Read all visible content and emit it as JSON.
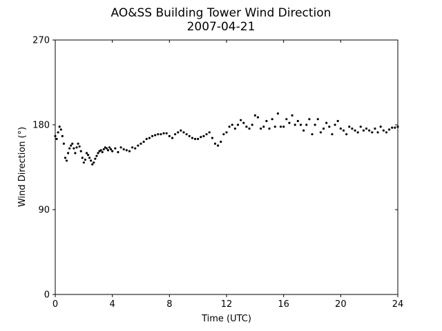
{
  "chart_data": {
    "type": "scatter",
    "title": "AO&SS Building Tower Wind Direction",
    "subtitle": "2007-04-21",
    "xlabel": "Time (UTC)",
    "ylabel": "Wind Direction (°)",
    "xlim": [
      0,
      24
    ],
    "ylim": [
      0,
      270
    ],
    "xticks": [
      0,
      4,
      8,
      12,
      16,
      20,
      24
    ],
    "yticks": [
      0,
      90,
      180,
      270
    ],
    "grid": false,
    "marker_color": "#000000",
    "series": [
      {
        "x": [
          0.0,
          0.1,
          0.2,
          0.3,
          0.4,
          0.5,
          0.6,
          0.7,
          0.8,
          0.9,
          1.0,
          1.1,
          1.2,
          1.3,
          1.4,
          1.5,
          1.6,
          1.7,
          1.8,
          1.9,
          2.0,
          2.1,
          2.2,
          2.3,
          2.4,
          2.5,
          2.6,
          2.7,
          2.8,
          2.9,
          3.0,
          3.1,
          3.2,
          3.3,
          3.4,
          3.5,
          3.6,
          3.7,
          3.8,
          3.9,
          4.0,
          4.2,
          4.4,
          4.6,
          4.8,
          5.0,
          5.2,
          5.4,
          5.6,
          5.8,
          6.0,
          6.2,
          6.4,
          6.6,
          6.8,
          7.0,
          7.2,
          7.4,
          7.6,
          7.8,
          8.0,
          8.2,
          8.4,
          8.6,
          8.8,
          9.0,
          9.2,
          9.4,
          9.6,
          9.8,
          10.0,
          10.2,
          10.4,
          10.6,
          10.8,
          11.0,
          11.2,
          11.4,
          11.6,
          11.8,
          12.0,
          12.2,
          12.4,
          12.6,
          12.8,
          13.0,
          13.2,
          13.4,
          13.6,
          13.8,
          14.0,
          14.2,
          14.4,
          14.6,
          14.8,
          15.0,
          15.2,
          15.4,
          15.6,
          15.8,
          16.0,
          16.2,
          16.4,
          16.6,
          16.8,
          17.0,
          17.2,
          17.4,
          17.6,
          17.8,
          18.0,
          18.2,
          18.4,
          18.6,
          18.8,
          19.0,
          19.2,
          19.4,
          19.6,
          19.8,
          20.0,
          20.2,
          20.4,
          20.6,
          20.8,
          21.0,
          21.2,
          21.4,
          21.6,
          21.8,
          22.0,
          22.2,
          22.4,
          22.6,
          22.8,
          23.0,
          23.2,
          23.4,
          23.6,
          23.8,
          24.0
        ],
        "y": [
          168,
          165,
          172,
          178,
          175,
          168,
          160,
          145,
          142,
          150,
          155,
          158,
          160,
          155,
          150,
          156,
          160,
          157,
          152,
          145,
          140,
          143,
          150,
          148,
          145,
          142,
          138,
          140,
          144,
          147,
          150,
          152,
          153,
          151,
          154,
          156,
          155,
          153,
          156,
          154,
          152,
          155,
          151,
          156,
          154,
          153,
          152,
          156,
          155,
          158,
          160,
          162,
          165,
          166,
          168,
          169,
          170,
          170,
          171,
          171,
          168,
          166,
          170,
          172,
          174,
          172,
          170,
          168,
          166,
          165,
          165,
          167,
          168,
          170,
          172,
          166,
          160,
          158,
          162,
          170,
          172,
          178,
          180,
          176,
          180,
          185,
          182,
          178,
          176,
          180,
          190,
          188,
          176,
          178,
          184,
          176,
          186,
          178,
          192,
          178,
          178,
          186,
          182,
          190,
          180,
          184,
          180,
          174,
          180,
          186,
          170,
          180,
          186,
          172,
          176,
          182,
          178,
          170,
          180,
          184,
          176,
          174,
          170,
          178,
          176,
          174,
          172,
          178,
          174,
          176,
          174,
          172,
          176,
          172,
          178,
          174,
          172,
          175,
          177,
          177,
          178
        ]
      }
    ]
  }
}
